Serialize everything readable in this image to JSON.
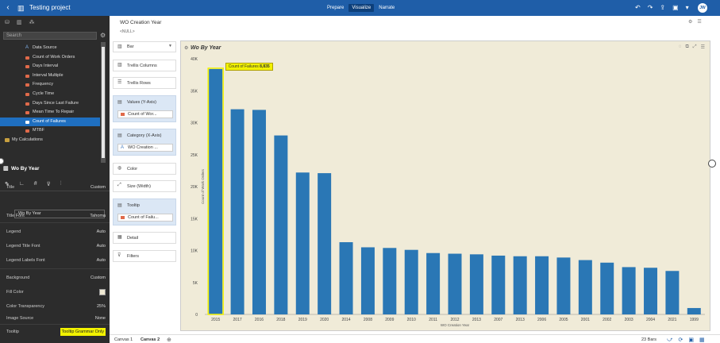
{
  "topbar": {
    "title": "Testing project",
    "tabs": [
      {
        "label": "Prepare"
      },
      {
        "label": "Visualize"
      },
      {
        "label": "Narrate"
      }
    ],
    "avatar": "JW"
  },
  "icons": {
    "back": "chevron-left-icon",
    "project": "chart-icon",
    "undo": "undo-icon",
    "redo": "redo-icon",
    "export": "export-icon",
    "save": "save-icon",
    "menu": "menu-icon"
  },
  "left": {
    "search_placeholder": "Search",
    "tree": [
      {
        "label": "Data Source",
        "type": "attr"
      },
      {
        "label": "Count of Work Orders",
        "type": "measure"
      },
      {
        "label": "Days Interval",
        "type": "measure"
      },
      {
        "label": "Interval Multiple",
        "type": "measure"
      },
      {
        "label": "Frequency",
        "type": "measure"
      },
      {
        "label": "Cycle Time",
        "type": "measure"
      },
      {
        "label": "Days Since Last Failure",
        "type": "measure"
      },
      {
        "label": "Mean Time To Repair",
        "type": "measure"
      },
      {
        "label": "Count of Failures",
        "type": "measure",
        "selected": true
      },
      {
        "label": "MTBF",
        "type": "measure"
      },
      {
        "label": "My Calculations",
        "type": "folder"
      }
    ],
    "props_title": "Wo By Year",
    "props": {
      "title_label": "Title",
      "title_val": "Custom",
      "title_input": "Wo By Year",
      "title_font_label": "Title Font",
      "title_font_val": "Tahoma",
      "legend_label": "Legend",
      "legend_val": "Auto",
      "legend_title_font_label": "Legend Title Font",
      "legend_title_font_val": "Auto",
      "legend_labels_font_label": "Legend Labels Font",
      "legend_labels_font_val": "Auto",
      "background_label": "Background",
      "background_val": "Custom",
      "fill_color_label": "Fill Color",
      "color_transparency_label": "Color Transparency",
      "color_transparency_val": "25%",
      "image_source_label": "Image Source",
      "image_source_val": "None",
      "tooltip_label": "Tooltip",
      "tooltip_val": "Tooltip Grammar Only"
    }
  },
  "canvas_header": {
    "title": "WO Creation Year",
    "subtitle": "<NULL>"
  },
  "grammar": {
    "chart_type": "Bar",
    "trellis_columns": "Trellis Columns",
    "trellis_rows": "Trellis Rows",
    "values_label": "Values (Y-Axis)",
    "values_pill": "Count of Wor...",
    "category_label": "Category (X-Axis)",
    "category_pill": "WO Creation ...",
    "color": "Color",
    "size": "Size (Width)",
    "tooltip_label": "Tooltip",
    "tooltip_pill": "Count of Failu...",
    "detail": "Detail",
    "filters": "Filters"
  },
  "chart_data": {
    "type": "bar",
    "title": "Wo By Year",
    "xlabel": "WO Creation Year",
    "ylabel": "Count of Work Orders",
    "ylim": [
      0,
      40000
    ],
    "yticks": [
      "0",
      "5K",
      "10K",
      "15K",
      "20K",
      "25K",
      "30K",
      "35K",
      "40K"
    ],
    "categories": [
      "2015",
      "2017",
      "2016",
      "2018",
      "2019",
      "2020",
      "2014",
      "2008",
      "2009",
      "2010",
      "2011",
      "2012",
      "2013",
      "2007",
      "2013",
      "2006",
      "2005",
      "2001",
      "2002",
      "2003",
      "2004",
      "2021",
      "1999"
    ],
    "values": [
      38400,
      32100,
      32000,
      28000,
      22200,
      22100,
      11300,
      10500,
      10400,
      10100,
      9600,
      9500,
      9400,
      9200,
      9100,
      9100,
      8900,
      8500,
      8100,
      7400,
      7300,
      6800,
      1000
    ],
    "color": "#2a77b5",
    "tooltip": {
      "label": "Count of Failures",
      "value": "8,835"
    }
  },
  "bottom": {
    "tabs": [
      {
        "label": "Canvas 1"
      },
      {
        "label": "Canvas 2",
        "active": true
      }
    ],
    "count": "23 Bars"
  }
}
